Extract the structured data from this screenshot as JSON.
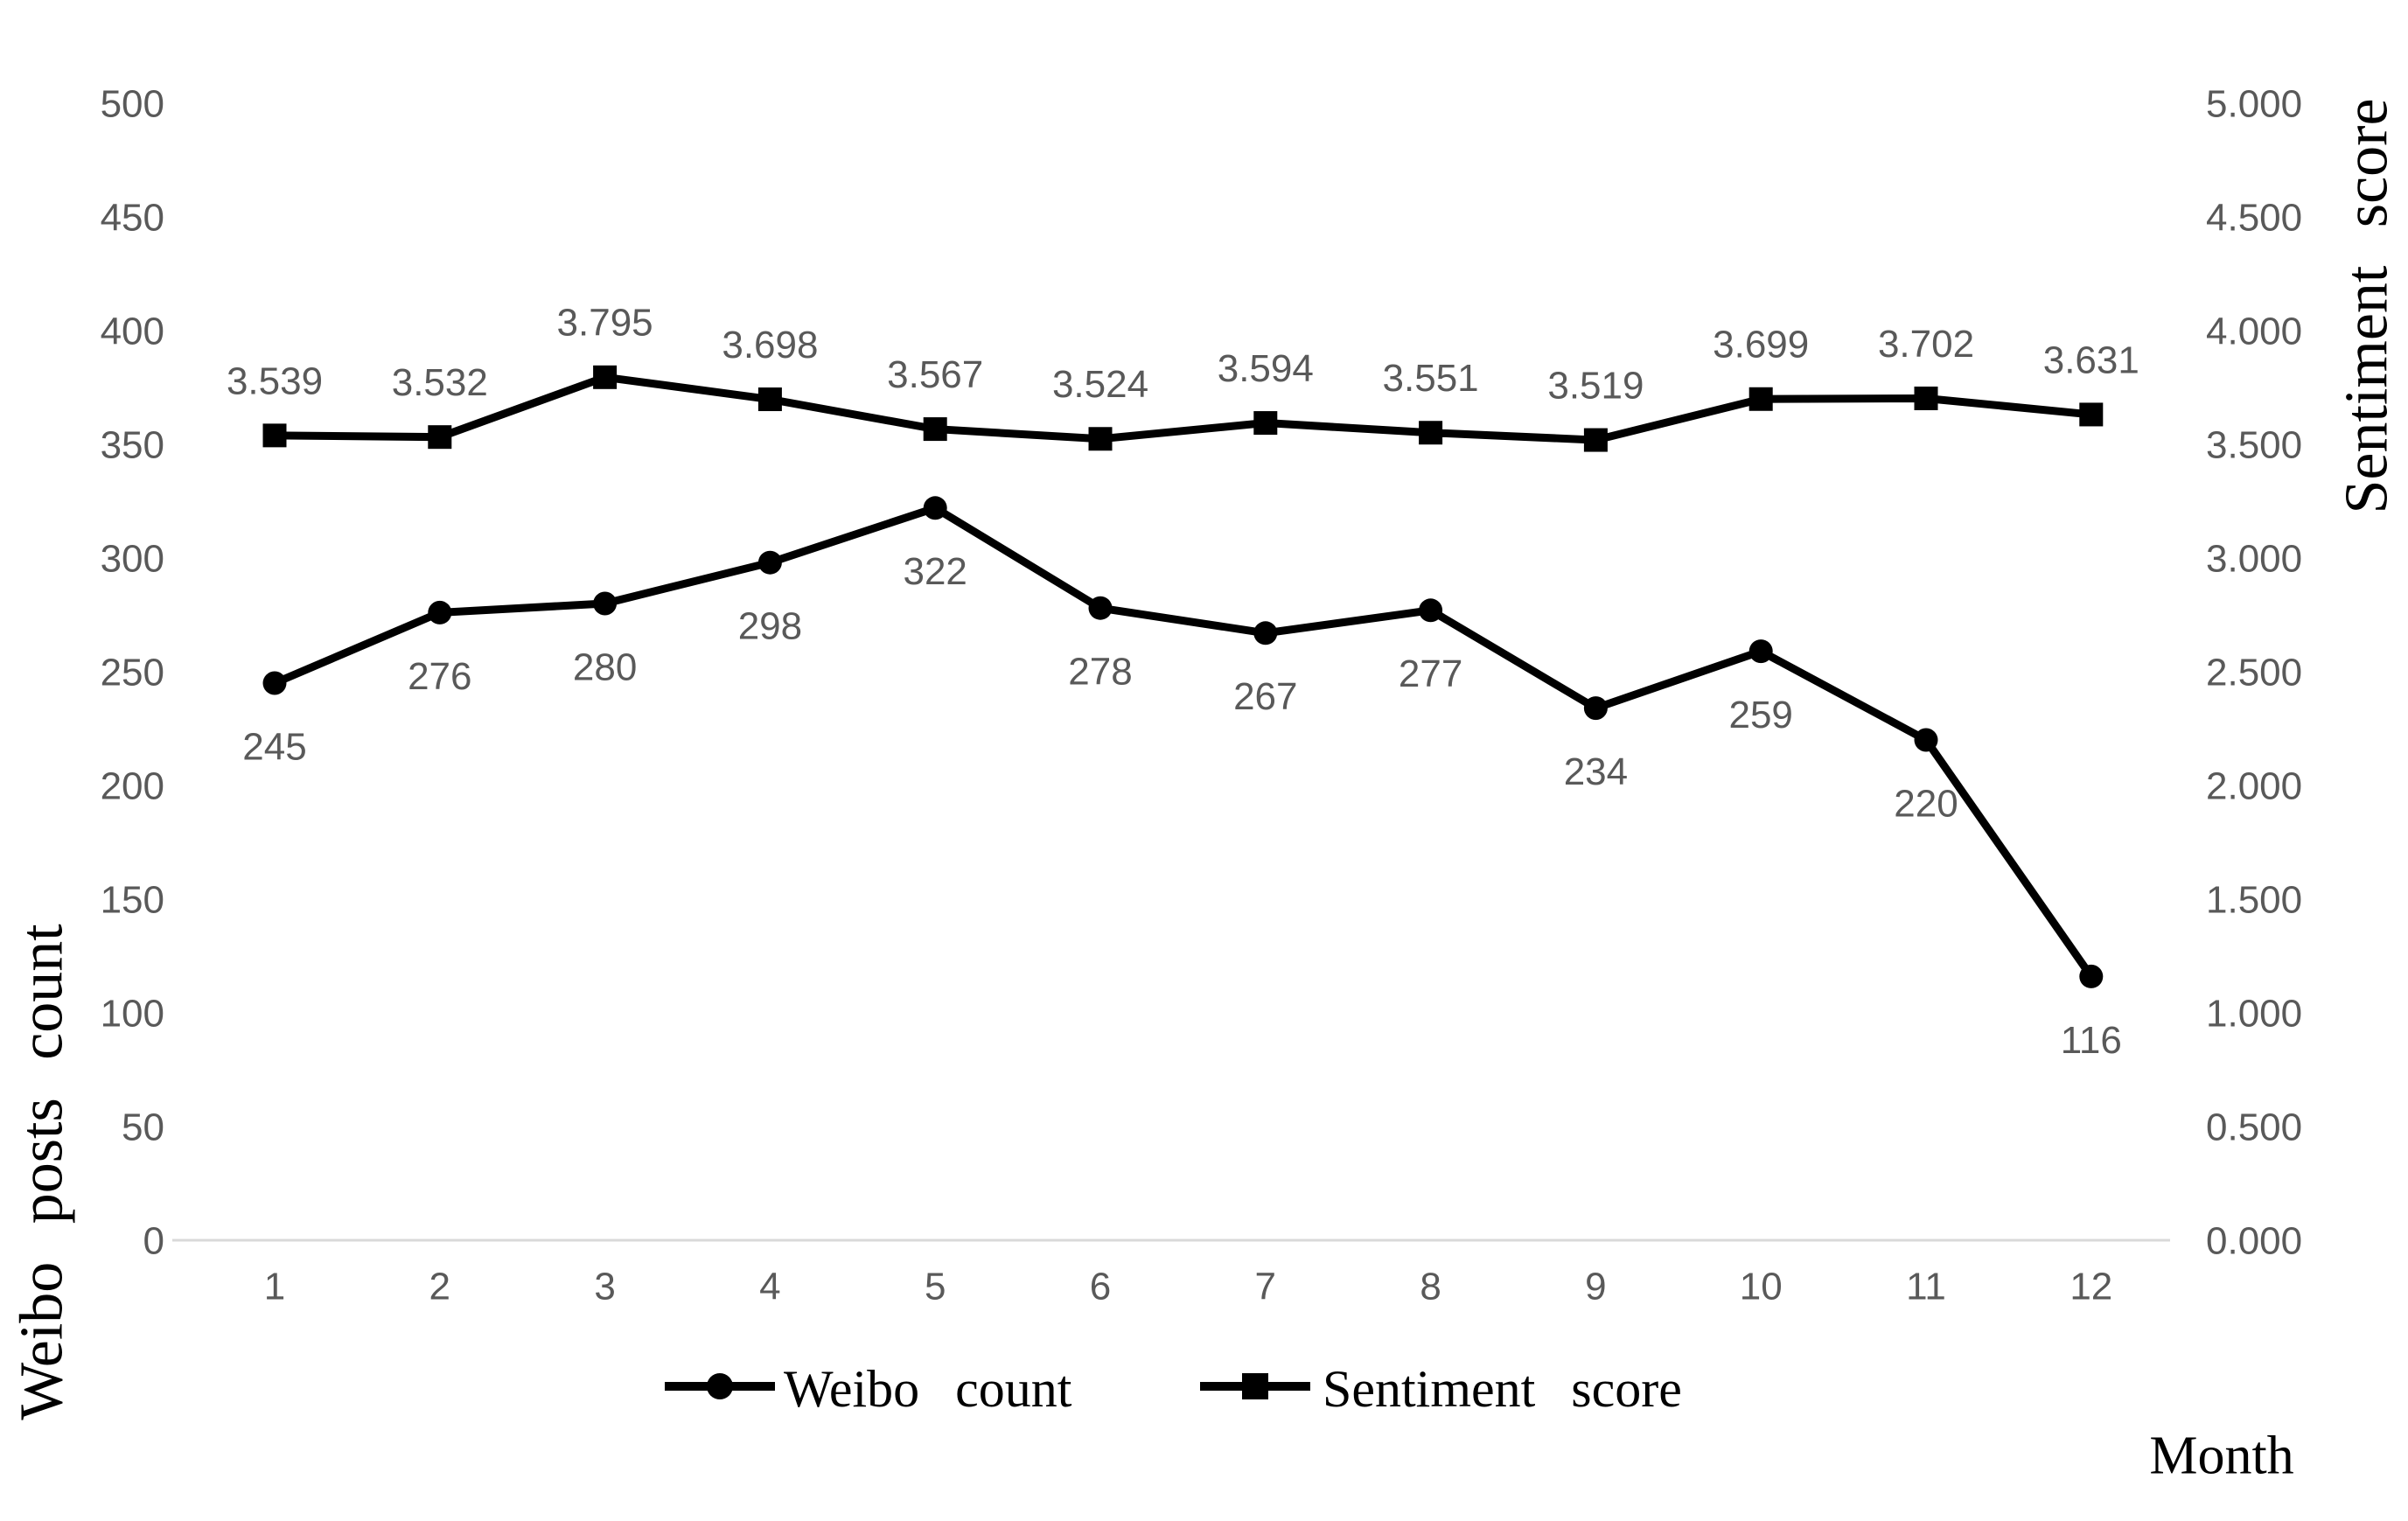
{
  "chart_data": {
    "type": "line",
    "title": "",
    "categories": [
      1,
      2,
      3,
      4,
      5,
      6,
      7,
      8,
      9,
      10,
      11,
      12
    ],
    "series": [
      {
        "name": "Weibo count",
        "legend_label": "Weibo  count",
        "axis": "left",
        "marker": "circle",
        "color": "#000000",
        "values": [
          245,
          276,
          280,
          298,
          322,
          278,
          267,
          277,
          234,
          259,
          220,
          116
        ],
        "data_labels": [
          "245",
          "276",
          "280",
          "298",
          "322",
          "278",
          "267",
          "277",
          "234",
          "259",
          "220",
          "116"
        ],
        "label_position": "below"
      },
      {
        "name": "Sentiment score",
        "legend_label": "Sentiment  score",
        "axis": "right",
        "marker": "square",
        "color": "#000000",
        "values": [
          3.539,
          3.532,
          3.795,
          3.698,
          3.567,
          3.524,
          3.594,
          3.551,
          3.519,
          3.699,
          3.702,
          3.631
        ],
        "data_labels": [
          "3.539",
          "3.532",
          "3.795",
          "3.698",
          "3.567",
          "3.524",
          "3.594",
          "3.551",
          "3.519",
          "3.699",
          "3.702",
          "3.631"
        ],
        "label_position": "above"
      }
    ],
    "x_axis": {
      "title": "Month",
      "tick_labels": [
        "1",
        "2",
        "3",
        "4",
        "5",
        "6",
        "7",
        "8",
        "9",
        "10",
        "11",
        "12"
      ]
    },
    "left_axis": {
      "title": "Weibo posts count",
      "min": 0,
      "max": 500,
      "step": 50,
      "tick_labels": [
        "0",
        "50",
        "100",
        "150",
        "200",
        "250",
        "300",
        "350",
        "400",
        "450",
        "500"
      ]
    },
    "right_axis": {
      "title": "Sentiment  score",
      "min": 0,
      "max": 5,
      "step": 0.5,
      "tick_labels": [
        "0.000",
        "0.500",
        "1.000",
        "1.500",
        "2.000",
        "2.500",
        "3.000",
        "3.500",
        "4.000",
        "4.500",
        "5.000"
      ]
    },
    "legend": [
      {
        "label": "Weibo  count",
        "marker": "circle"
      },
      {
        "label": "Sentiment  score",
        "marker": "square"
      }
    ],
    "legend_position": "bottom-center",
    "grid": false,
    "colors": {
      "series_line": "#000000",
      "tick_label": "#595959",
      "data_label": "#595959",
      "axis_line": "#d9d9d9",
      "background": "#ffffff"
    }
  }
}
